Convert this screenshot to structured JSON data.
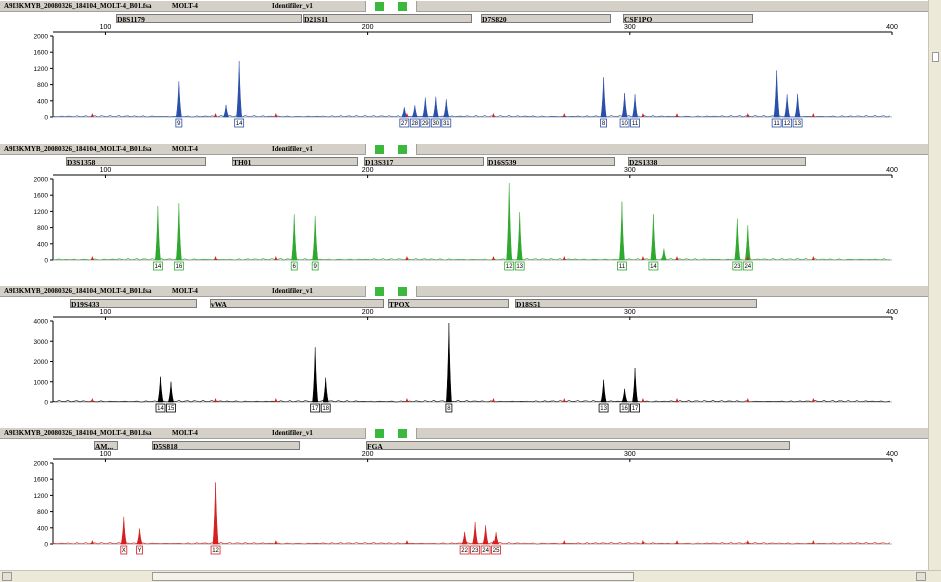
{
  "chart_data": [
    {
      "type": "area",
      "file": "A9I3KMYB_20080326_184104_MOLT-4_B01.fsa",
      "sample": "MOLT-4",
      "panel": "Identifiler_v1",
      "dye_color": "#2a4fa8",
      "markers": [
        "D8S1179",
        "D21S11",
        "D7S820",
        "CSF1PO"
      ],
      "xlim": [
        80,
        400
      ],
      "xticks": [
        100,
        200,
        300,
        400
      ],
      "ylim": [
        0,
        2000
      ],
      "yticks": [
        0,
        400,
        800,
        1200,
        1600,
        2000
      ],
      "peaks": [
        {
          "x": 128,
          "y": 880,
          "label": "9"
        },
        {
          "x": 146,
          "y": 300,
          "label": ""
        },
        {
          "x": 151,
          "y": 1380,
          "label": "14"
        },
        {
          "x": 214,
          "y": 240,
          "label": "27"
        },
        {
          "x": 218,
          "y": 290,
          "label": "28"
        },
        {
          "x": 222,
          "y": 480,
          "label": "29"
        },
        {
          "x": 226,
          "y": 500,
          "label": "30"
        },
        {
          "x": 230,
          "y": 440,
          "label": "31"
        },
        {
          "x": 290,
          "y": 980,
          "label": "8"
        },
        {
          "x": 298,
          "y": 590,
          "label": "10"
        },
        {
          "x": 302,
          "y": 560,
          "label": "11"
        },
        {
          "x": 356,
          "y": 1150,
          "label": "11"
        },
        {
          "x": 360,
          "y": 560,
          "label": "12"
        },
        {
          "x": 364,
          "y": 570,
          "label": "13"
        }
      ]
    },
    {
      "type": "area",
      "file": "A9I3KMYB_20080326_184104_MOLT-4_B01.fsa",
      "sample": "MOLT-4",
      "panel": "Identifiler_v1",
      "dye_color": "#2fa82f",
      "markers": [
        "D3S1358",
        "TH01",
        "D13S317",
        "D16S539",
        "D2S1338"
      ],
      "xlim": [
        80,
        400
      ],
      "xticks": [
        100,
        200,
        300,
        400
      ],
      "ylim": [
        0,
        2000
      ],
      "yticks": [
        0,
        400,
        800,
        1200,
        1600,
        2000
      ],
      "peaks": [
        {
          "x": 120,
          "y": 1330,
          "label": "14"
        },
        {
          "x": 128,
          "y": 1400,
          "label": "16"
        },
        {
          "x": 172,
          "y": 1130,
          "label": "6"
        },
        {
          "x": 180,
          "y": 1090,
          "label": "9"
        },
        {
          "x": 254,
          "y": 1900,
          "label": "12"
        },
        {
          "x": 258,
          "y": 1180,
          "label": "13"
        },
        {
          "x": 297,
          "y": 1440,
          "label": "11"
        },
        {
          "x": 309,
          "y": 1130,
          "label": "14"
        },
        {
          "x": 313,
          "y": 280,
          "label": ""
        },
        {
          "x": 341,
          "y": 1020,
          "label": "23"
        },
        {
          "x": 345,
          "y": 860,
          "label": "24"
        }
      ]
    },
    {
      "type": "area",
      "file": "A9I3KMYB_20080326_184104_MOLT-4_B01.fsa",
      "sample": "MOLT-4",
      "panel": "Identifiler_v1",
      "dye_color": "#000000",
      "markers": [
        "D19S433",
        "vWA",
        "TPOX",
        "D18S51"
      ],
      "xlim": [
        80,
        400
      ],
      "xticks": [
        100,
        200,
        300,
        400
      ],
      "ylim": [
        0,
        4000
      ],
      "yticks": [
        0,
        1000,
        2000,
        3000,
        4000
      ],
      "peaks": [
        {
          "x": 121,
          "y": 1250,
          "label": "14"
        },
        {
          "x": 125,
          "y": 1000,
          "label": "15"
        },
        {
          "x": 180,
          "y": 2700,
          "label": "17"
        },
        {
          "x": 184,
          "y": 1200,
          "label": "18"
        },
        {
          "x": 231,
          "y": 3900,
          "label": "8"
        },
        {
          "x": 290,
          "y": 1100,
          "label": "13"
        },
        {
          "x": 298,
          "y": 650,
          "label": "16"
        },
        {
          "x": 302,
          "y": 1680,
          "label": "17"
        }
      ]
    },
    {
      "type": "area",
      "file": "A9I3KMYB_20080326_184104_MOLT-4_B01.fsa",
      "sample": "MOLT-4",
      "panel": "Identifiler_v1",
      "dye_color": "#d42020",
      "markers": [
        "AM...",
        "D5S818",
        "FGA"
      ],
      "xlim": [
        80,
        400
      ],
      "xticks": [
        100,
        200,
        300,
        400
      ],
      "ylim": [
        0,
        2000
      ],
      "yticks": [
        0,
        400,
        800,
        1200,
        1600,
        2000
      ],
      "peaks": [
        {
          "x": 107,
          "y": 670,
          "label": "X"
        },
        {
          "x": 113,
          "y": 380,
          "label": "Y"
        },
        {
          "x": 142,
          "y": 1520,
          "label": "12"
        },
        {
          "x": 237,
          "y": 300,
          "label": "22"
        },
        {
          "x": 241,
          "y": 540,
          "label": "23"
        },
        {
          "x": 245,
          "y": 460,
          "label": "24"
        },
        {
          "x": 249,
          "y": 290,
          "label": "25"
        }
      ]
    }
  ]
}
